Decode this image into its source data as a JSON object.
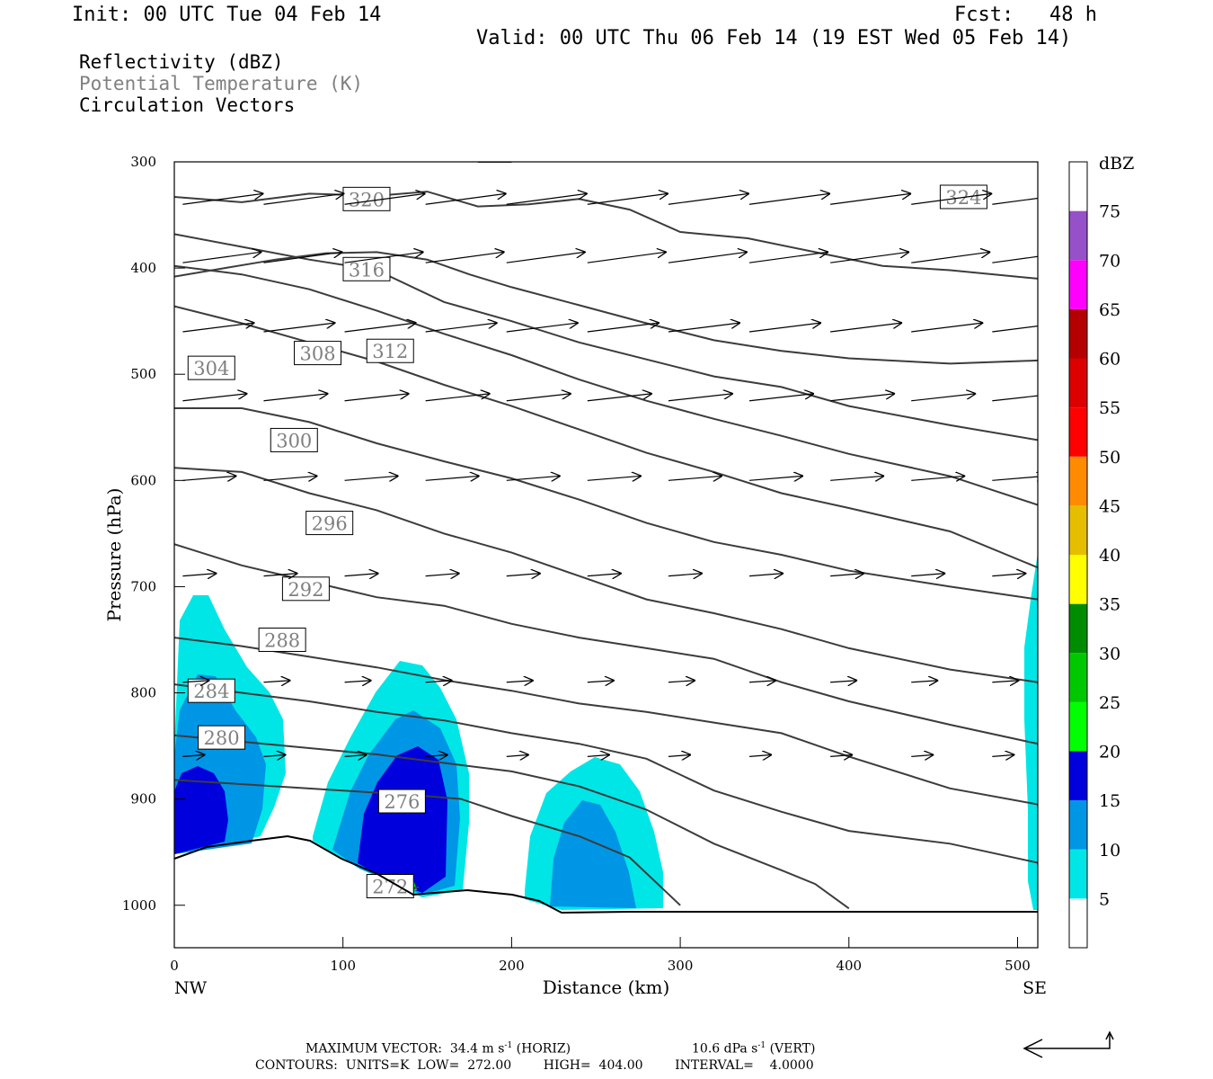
{
  "header": {
    "init": "Init: 00 UTC Tue 04 Feb 14",
    "fcst": "Fcst:   48 h",
    "valid": "Valid: 00 UTC Thu 06 Feb 14 (19 EST Wed 05 Feb 14)"
  },
  "fields": {
    "f1": "Reflectivity (dBZ)",
    "f2": "Potential Temperature (K)",
    "f3": "Circulation Vectors"
  },
  "colors": {
    "theta_text": "#808080",
    "contour_line": "#3c3c3c",
    "terrain": "#000000"
  },
  "chart_data": {
    "type": "cross-section",
    "xlabel": "Distance (km)",
    "ylabel": "Pressure (hPa)",
    "xlim": [
      0,
      512
    ],
    "ylim": [
      1040,
      300
    ],
    "x_ticks": [
      0,
      100,
      200,
      300,
      400,
      500
    ],
    "y_ticks": [
      300,
      400,
      500,
      600,
      700,
      800,
      900,
      1000
    ],
    "x_end_labels": {
      "left": "NW",
      "right": "SE"
    },
    "colorbar": {
      "unit": "dBZ",
      "levels": [
        5,
        10,
        15,
        20,
        25,
        30,
        35,
        40,
        45,
        50,
        55,
        60,
        65,
        70,
        75
      ],
      "colors": [
        "#ffffff",
        "#00e6e6",
        "#0096e6",
        "#0000dc",
        "#00ff00",
        "#00c800",
        "#008c00",
        "#ffff00",
        "#e6be00",
        "#ff8c00",
        "#ff0000",
        "#dc0000",
        "#b40000",
        "#ff00ff",
        "#9650c8",
        "#ffffff"
      ]
    },
    "theta_contours": [
      {
        "level": 272,
        "label_pos": [
          128,
          982
        ],
        "points": [
          [
            130,
            988
          ],
          [
            145,
            983
          ]
        ]
      },
      {
        "level": 276,
        "label_pos": [
          135,
          902
        ],
        "points": [
          [
            0,
            882
          ],
          [
            60,
            888
          ],
          [
            100,
            892
          ],
          [
            140,
            896
          ],
          [
            170,
            900
          ],
          [
            200,
            916
          ],
          [
            240,
            935
          ],
          [
            270,
            955
          ],
          [
            300,
            1000
          ]
        ]
      },
      {
        "level": 280,
        "label_pos": [
          28,
          842
        ],
        "points": [
          [
            0,
            840
          ],
          [
            40,
            846
          ],
          [
            80,
            852
          ],
          [
            120,
            858
          ],
          [
            160,
            866
          ],
          [
            200,
            874
          ],
          [
            240,
            888
          ],
          [
            280,
            910
          ],
          [
            320,
            942
          ],
          [
            360,
            967
          ],
          [
            380,
            980
          ],
          [
            400,
            1003
          ]
        ]
      },
      {
        "level": 284,
        "label_pos": [
          22,
          798
        ],
        "points": [
          [
            0,
            792
          ],
          [
            40,
            800
          ],
          [
            80,
            808
          ],
          [
            120,
            818
          ],
          [
            160,
            826
          ],
          [
            200,
            838
          ],
          [
            240,
            848
          ],
          [
            280,
            862
          ],
          [
            320,
            892
          ],
          [
            360,
            912
          ],
          [
            400,
            930
          ],
          [
            460,
            942
          ],
          [
            512,
            960
          ]
        ]
      },
      {
        "level": 288,
        "label_pos": [
          64,
          750
        ],
        "points": [
          [
            0,
            748
          ],
          [
            40,
            756
          ],
          [
            80,
            766
          ],
          [
            120,
            776
          ],
          [
            160,
            788
          ],
          [
            200,
            798
          ],
          [
            240,
            810
          ],
          [
            280,
            818
          ],
          [
            320,
            828
          ],
          [
            360,
            838
          ],
          [
            400,
            860
          ],
          [
            460,
            890
          ],
          [
            512,
            905
          ]
        ]
      },
      {
        "level": 292,
        "label_pos": [
          78,
          702
        ],
        "points": [
          [
            0,
            660
          ],
          [
            40,
            680
          ],
          [
            80,
            695
          ],
          [
            120,
            710
          ],
          [
            160,
            718
          ],
          [
            200,
            735
          ],
          [
            240,
            748
          ],
          [
            280,
            758
          ],
          [
            320,
            768
          ],
          [
            360,
            790
          ],
          [
            400,
            808
          ],
          [
            460,
            830
          ],
          [
            512,
            848
          ]
        ]
      },
      {
        "level": 296,
        "label_pos": [
          92,
          640
        ],
        "points": [
          [
            0,
            588
          ],
          [
            40,
            592
          ],
          [
            80,
            612
          ],
          [
            120,
            628
          ],
          [
            160,
            650
          ],
          [
            200,
            668
          ],
          [
            240,
            690
          ],
          [
            280,
            712
          ],
          [
            320,
            725
          ],
          [
            360,
            740
          ],
          [
            400,
            758
          ],
          [
            460,
            778
          ],
          [
            512,
            790
          ]
        ]
      },
      {
        "level": 300,
        "label_pos": [
          71,
          562
        ],
        "points": [
          [
            0,
            532
          ],
          [
            40,
            532
          ],
          [
            80,
            545
          ],
          [
            120,
            565
          ],
          [
            160,
            582
          ],
          [
            200,
            598
          ],
          [
            240,
            618
          ],
          [
            280,
            640
          ],
          [
            320,
            658
          ],
          [
            360,
            670
          ],
          [
            400,
            685
          ],
          [
            460,
            700
          ],
          [
            512,
            712
          ]
        ]
      },
      {
        "level": 304,
        "label_pos": [
          22,
          494
        ],
        "points": [
          [
            0,
            436
          ],
          [
            40,
            452
          ],
          [
            80,
            470
          ],
          [
            120,
            488
          ],
          [
            160,
            510
          ],
          [
            200,
            530
          ],
          [
            240,
            552
          ],
          [
            280,
            574
          ],
          [
            320,
            592
          ],
          [
            360,
            612
          ],
          [
            400,
            626
          ],
          [
            460,
            648
          ],
          [
            512,
            682
          ]
        ]
      },
      {
        "level": 308,
        "label_pos": [
          85,
          480
        ],
        "points": [
          [
            0,
            398
          ],
          [
            40,
            406
          ],
          [
            80,
            420
          ],
          [
            120,
            440
          ],
          [
            160,
            462
          ],
          [
            200,
            482
          ],
          [
            240,
            505
          ],
          [
            280,
            525
          ],
          [
            320,
            542
          ],
          [
            360,
            558
          ],
          [
            400,
            575
          ],
          [
            460,
            596
          ],
          [
            512,
            623
          ]
        ]
      },
      {
        "level": 312,
        "label_pos": [
          128,
          478
        ],
        "points": [
          [
            0,
            368
          ],
          [
            40,
            380
          ],
          [
            80,
            392
          ],
          [
            120,
            402
          ],
          [
            160,
            432
          ],
          [
            200,
            450
          ],
          [
            240,
            470
          ],
          [
            280,
            486
          ],
          [
            320,
            502
          ],
          [
            360,
            512
          ],
          [
            400,
            530
          ],
          [
            460,
            548
          ],
          [
            512,
            562
          ]
        ]
      },
      {
        "level": 316,
        "label_pos": [
          114,
          401
        ],
        "points": [
          [
            0,
            408
          ],
          [
            30,
            400
          ],
          [
            60,
            392
          ],
          [
            90,
            386
          ],
          [
            120,
            385
          ],
          [
            150,
            392
          ],
          [
            175,
            406
          ],
          [
            200,
            418
          ],
          [
            240,
            435
          ],
          [
            280,
            452
          ],
          [
            320,
            468
          ],
          [
            360,
            478
          ],
          [
            400,
            485
          ],
          [
            460,
            490
          ],
          [
            512,
            487
          ]
        ]
      },
      {
        "level": 320,
        "label_pos": [
          114,
          335
        ],
        "points": [
          [
            0,
            333
          ],
          [
            40,
            338
          ],
          [
            80,
            330
          ],
          [
            120,
            332
          ],
          [
            150,
            328
          ],
          [
            180,
            342
          ],
          [
            210,
            340
          ],
          [
            240,
            335
          ],
          [
            270,
            345
          ],
          [
            300,
            366
          ],
          [
            340,
            372
          ],
          [
            380,
            385
          ],
          [
            420,
            398
          ],
          [
            460,
            402
          ],
          [
            512,
            410
          ]
        ]
      },
      {
        "level": 324,
        "label_pos": [
          468,
          333
        ],
        "points": [
          [
            180,
            300
          ],
          [
            200,
            300
          ]
        ]
      }
    ]
  },
  "footer": {
    "max_vector_a": "MAXIMUM VECTOR:  34.4 m s",
    "exp": "-1",
    "max_vector_b": " (HORIZ)",
    "vert_a": "10.6 dPa s",
    "vert_b": " (VERT)",
    "contours_line": "CONTOURS:  UNITS=K  LOW=  272.00        HIGH=  404.00        INTERVAL=    4.0000"
  }
}
